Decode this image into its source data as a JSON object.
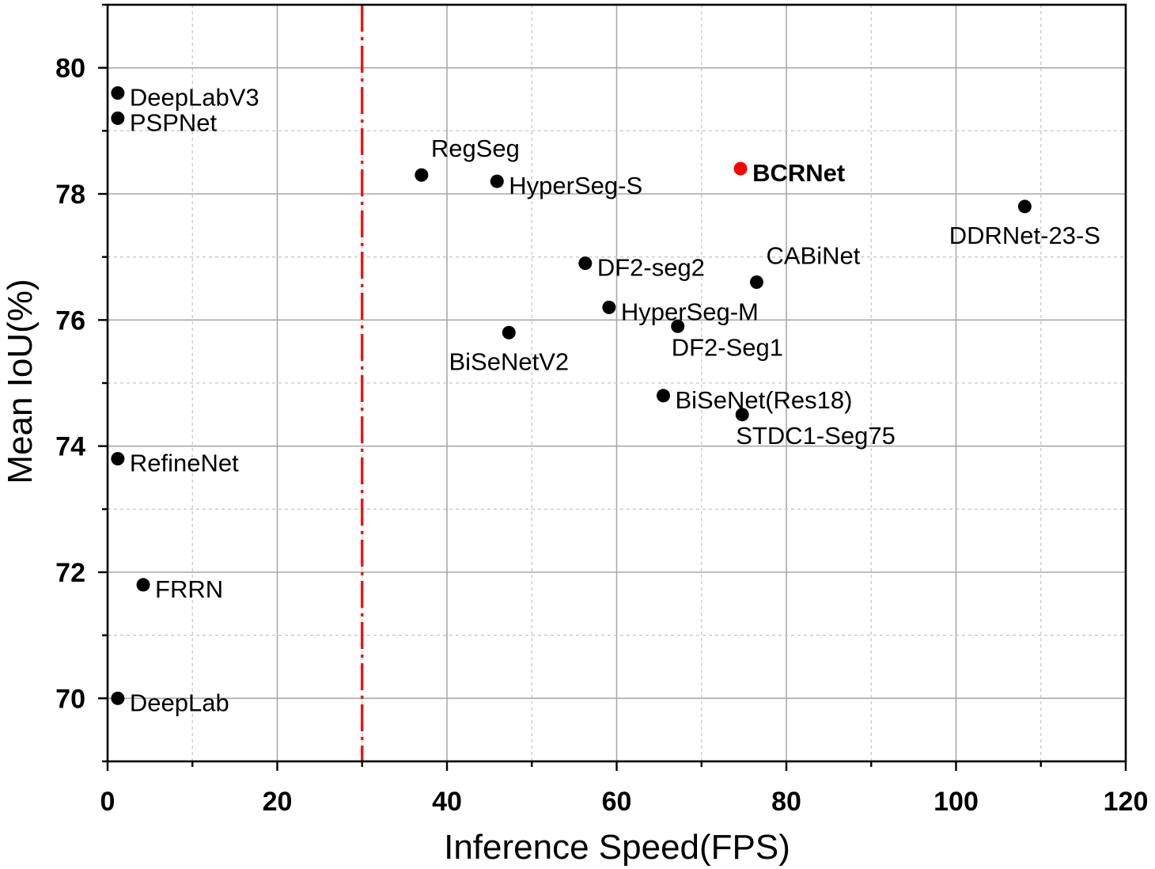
{
  "chart_data": {
    "type": "scatter",
    "title": "",
    "xlabel": "Inference Speed(FPS)",
    "ylabel": "Mean IoU(%)",
    "xlim": [
      0,
      120
    ],
    "ylim": [
      69,
      81
    ],
    "xticks": [
      0,
      20,
      40,
      60,
      80,
      100,
      120
    ],
    "yticks": [
      70,
      72,
      74,
      76,
      78,
      80
    ],
    "grid": true,
    "reference_line": {
      "x": 30,
      "color": "#e31a1c",
      "style": "dash-dot"
    },
    "points": [
      {
        "name": "DeepLabV3",
        "x": 1.2,
        "y": 79.6,
        "color": "#000000",
        "label_pos": "right",
        "bold": false
      },
      {
        "name": "PSPNet",
        "x": 1.2,
        "y": 79.2,
        "color": "#000000",
        "label_pos": "right",
        "bold": false
      },
      {
        "name": "RegSeg",
        "x": 37,
        "y": 78.3,
        "color": "#000000",
        "label_pos": "above-right",
        "bold": false
      },
      {
        "name": "HyperSeg-S",
        "x": 45.9,
        "y": 78.2,
        "color": "#000000",
        "label_pos": "right",
        "bold": false
      },
      {
        "name": "BCRNet",
        "x": 74.6,
        "y": 78.4,
        "color": "#ff0000",
        "label_pos": "right",
        "bold": true
      },
      {
        "name": "DDRNet-23-S",
        "x": 108.1,
        "y": 77.8,
        "color": "#000000",
        "label_pos": "below",
        "bold": false
      },
      {
        "name": "DF2-seg2",
        "x": 56.3,
        "y": 76.9,
        "color": "#000000",
        "label_pos": "right",
        "bold": false
      },
      {
        "name": "CABiNet",
        "x": 76.5,
        "y": 76.6,
        "color": "#000000",
        "label_pos": "above-right",
        "bold": false
      },
      {
        "name": "HyperSeg-M",
        "x": 59.1,
        "y": 76.2,
        "color": "#000000",
        "label_pos": "right",
        "bold": false
      },
      {
        "name": "BiSeNetV2",
        "x": 47.3,
        "y": 75.8,
        "color": "#000000",
        "label_pos": "below",
        "bold": false
      },
      {
        "name": "DF2-Seg1",
        "x": 67.2,
        "y": 75.9,
        "color": "#000000",
        "label_pos": "below-right",
        "bold": false
      },
      {
        "name": "BiSeNet(Res18)",
        "x": 65.5,
        "y": 74.8,
        "color": "#000000",
        "label_pos": "right",
        "bold": false
      },
      {
        "name": "STDC1-Seg75",
        "x": 74.8,
        "y": 74.5,
        "color": "#000000",
        "label_pos": "below-right",
        "bold": false
      },
      {
        "name": "RefineNet",
        "x": 1.2,
        "y": 73.8,
        "color": "#000000",
        "label_pos": "right",
        "bold": false
      },
      {
        "name": "FRRN",
        "x": 4.2,
        "y": 71.8,
        "color": "#000000",
        "label_pos": "right",
        "bold": false
      },
      {
        "name": "DeepLab",
        "x": 1.2,
        "y": 70.0,
        "color": "#000000",
        "label_pos": "right",
        "bold": false
      }
    ]
  }
}
